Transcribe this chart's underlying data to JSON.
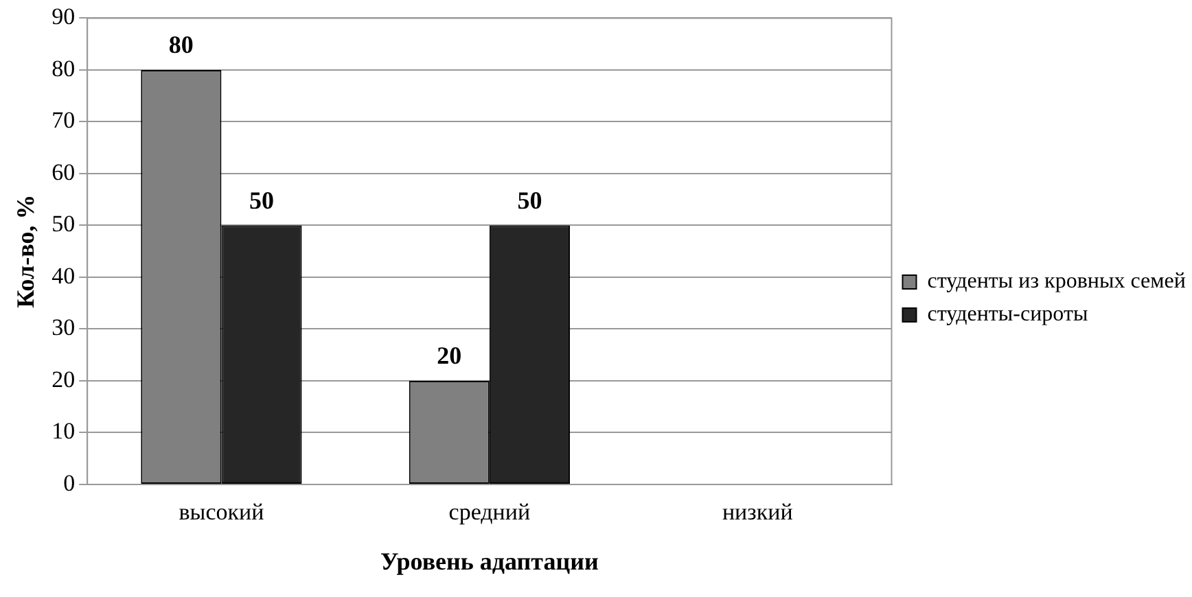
{
  "chart_data": {
    "type": "bar",
    "xlabel": "Уровень адаптации",
    "ylabel": "Кол-во, %",
    "categories": [
      "высокий",
      "средний",
      "низкий"
    ],
    "series": [
      {
        "name": "студенты из кровных семей",
        "color": "#808080",
        "values": [
          80,
          20,
          0
        ],
        "value_labels": [
          "80",
          "20",
          null
        ]
      },
      {
        "name": "студенты-сироты",
        "color": "#262626",
        "values": [
          50,
          50,
          0
        ],
        "value_labels": [
          "50",
          "50",
          null
        ]
      }
    ],
    "ylim": [
      0,
      90
    ],
    "yticks": [
      0,
      10,
      20,
      30,
      40,
      50,
      60,
      70,
      80,
      90
    ],
    "grid": "y",
    "legend": "right"
  }
}
